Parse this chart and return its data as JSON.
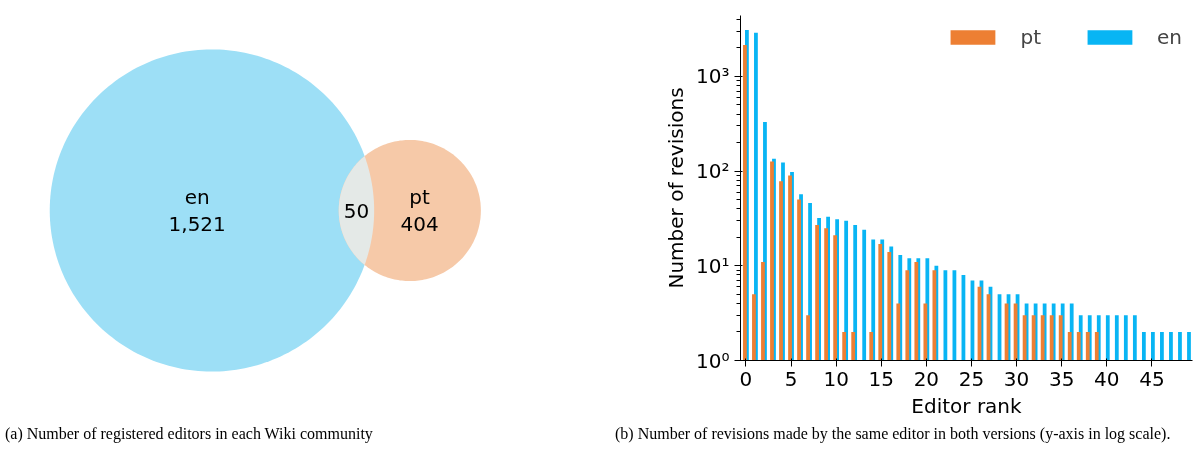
{
  "chart_data": [
    {
      "type": "other",
      "categories": [
        "en",
        "pt"
      ],
      "values": [
        1521,
        404
      ],
      "value_labels": [
        "1,521",
        "404"
      ],
      "colors": [
        "#9ddff6",
        "#f6c9a8"
      ],
      "annotations": [
        "50",
        "(a) Number of registered editors in each Wiki community"
      ]
    },
    {
      "type": "bar",
      "x": [
        0,
        1,
        2,
        3,
        4,
        5,
        6,
        7,
        8,
        9,
        10,
        11,
        12,
        13,
        14,
        15,
        16,
        17,
        18,
        19,
        20,
        21,
        22,
        23,
        24,
        25,
        26,
        27,
        28,
        29,
        30,
        31,
        32,
        33,
        34,
        35,
        36,
        37,
        38,
        39,
        40,
        41,
        42,
        43,
        44,
        45,
        46,
        47,
        48,
        49
      ],
      "series": [
        {
          "name": "pt",
          "color": "#ed7f33",
          "values": [
            2150,
            5,
            11,
            126,
            78,
            90,
            50,
            3,
            27,
            25,
            21,
            2,
            2,
            null,
            2,
            17,
            14,
            4,
            9,
            11,
            4,
            9,
            null,
            null,
            null,
            null,
            6,
            5,
            null,
            4,
            4,
            3,
            3,
            3,
            3,
            3,
            2,
            2,
            2,
            2,
            null,
            null,
            null,
            null,
            null,
            null,
            null,
            null,
            null,
            null
          ]
        },
        {
          "name": "en",
          "color": "#08b5f4",
          "values": [
            3100,
            2900,
            330,
            135,
            123,
            98,
            57,
            46,
            32,
            33,
            31,
            30,
            27,
            24,
            19,
            19,
            16,
            13,
            12,
            12,
            12,
            10,
            9,
            9,
            8,
            7,
            7,
            6,
            5,
            5,
            5,
            4,
            4,
            4,
            4,
            4,
            4,
            3,
            3,
            3,
            3,
            3,
            3,
            3,
            2,
            2,
            2,
            2,
            2,
            2
          ]
        }
      ],
      "log": "y",
      "xlim": [
        -0.6,
        49.5
      ],
      "ylim": [
        1,
        4400
      ],
      "xticks": [
        0,
        5,
        10,
        15,
        20,
        25,
        30,
        35,
        40,
        45
      ],
      "yticks": [
        {
          "value": 1,
          "label": "10⁰"
        },
        {
          "value": 10,
          "label": "10¹"
        },
        {
          "value": 100,
          "label": "10²"
        },
        {
          "value": 1000,
          "label": "10³"
        }
      ],
      "xlabel": "Editor rank",
      "ylabel": "Number of revisions",
      "legend": "top right",
      "grid": false,
      "annotations": [
        "(b) Number of revisions made by the same editor in both versions (y-axis in log scale)."
      ]
    }
  ]
}
